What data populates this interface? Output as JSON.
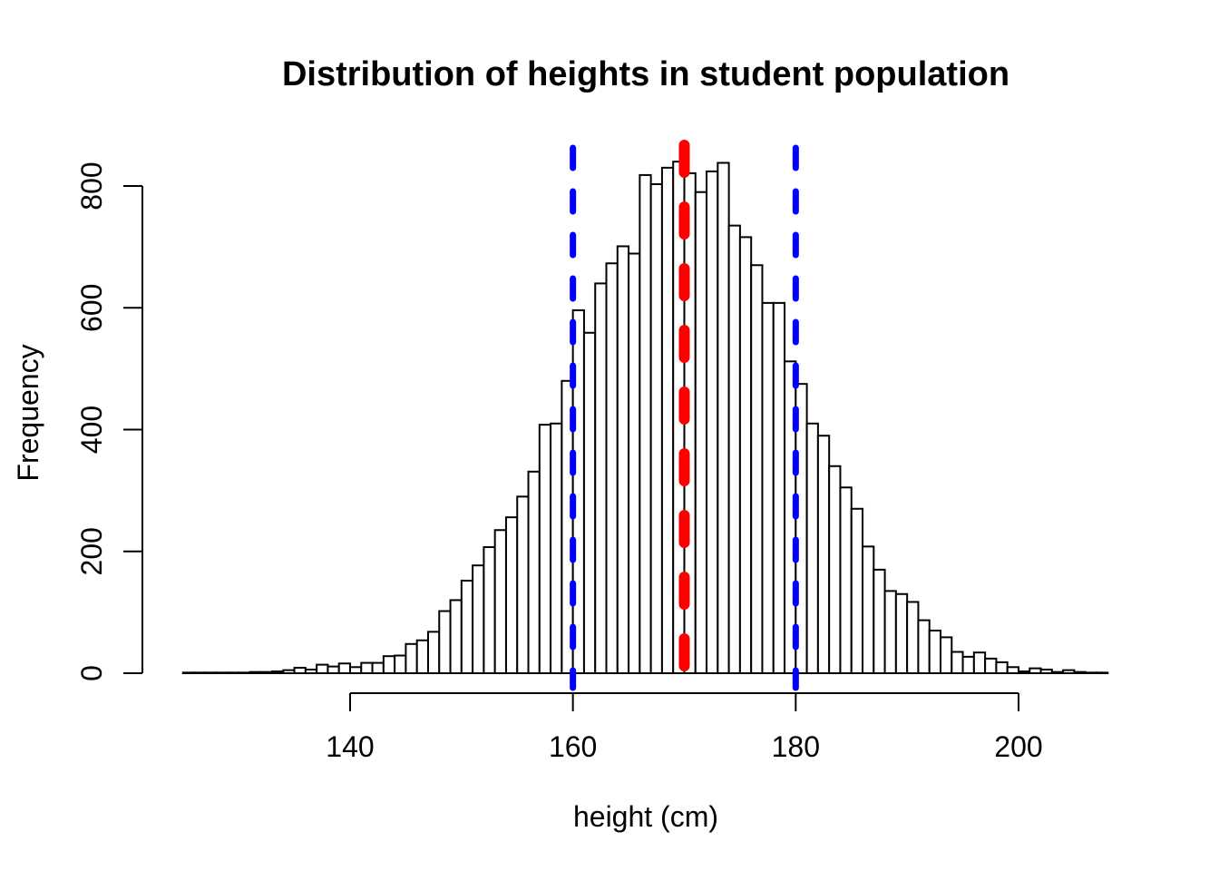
{
  "figure": {
    "background": "#FFFFFF"
  },
  "chart_data": {
    "type": "bar",
    "subtype": "histogram",
    "title": "Distribution of heights in student population",
    "xlabel": "height (cm)",
    "ylabel": "Frequency",
    "grid": false,
    "legend": null,
    "bin_start": 125,
    "bin_width": 1,
    "counts": [
      1,
      1,
      1,
      1,
      1,
      1,
      2,
      2,
      3,
      5,
      9,
      6,
      14,
      11,
      16,
      10,
      17,
      17,
      28,
      29,
      48,
      54,
      68,
      102,
      120,
      152,
      177,
      207,
      235,
      256,
      290,
      331,
      408,
      410,
      480,
      596,
      559,
      640,
      673,
      701,
      689,
      818,
      803,
      830,
      840,
      821,
      790,
      824,
      838,
      735,
      716,
      670,
      608,
      608,
      512,
      475,
      410,
      390,
      340,
      305,
      270,
      208,
      170,
      135,
      130,
      117,
      87,
      70,
      59,
      35,
      27,
      34,
      24,
      18,
      10,
      3,
      8,
      6,
      2,
      5,
      2,
      1,
      1
    ],
    "x_ticks": [
      140,
      160,
      180,
      200
    ],
    "y_ticks": [
      0,
      200,
      400,
      600,
      800
    ],
    "xlim": [
      125,
      208
    ],
    "ylim": [
      0,
      850
    ],
    "bar_fill": "#FFFFFF",
    "bar_border": "#000000",
    "axis_color": "#000000",
    "mean_line": {
      "x": 170,
      "color": "#FF0000",
      "style": "dashed"
    },
    "sd_lines": {
      "xs": [
        160,
        180
      ],
      "color": "#0000FF",
      "style": "dashed"
    }
  }
}
